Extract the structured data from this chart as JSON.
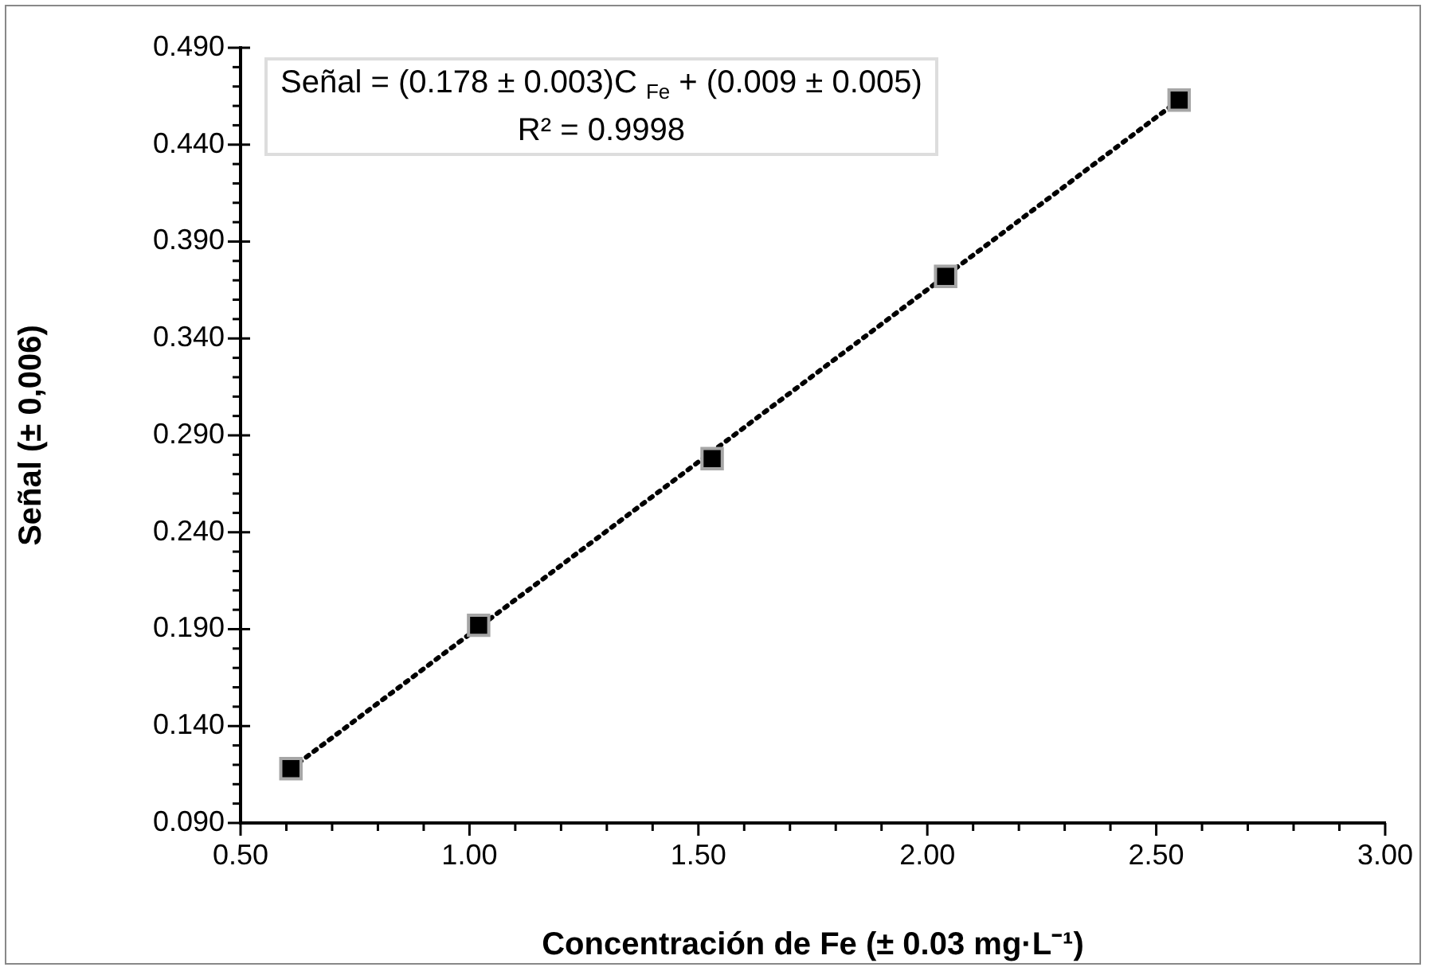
{
  "chart_data": {
    "type": "scatter",
    "xlabel": "Concentración de Fe (± 0.03 mg·L⁻¹)",
    "ylabel": "Señal (± 0,006)",
    "x": [
      0.61,
      1.02,
      1.53,
      2.04,
      2.55
    ],
    "series": [
      {
        "color": "#000000",
        "values": [
          0.118,
          0.192,
          0.278,
          0.372,
          0.463
        ],
        "marker": "square"
      },
      {
        "type": "line",
        "x": [
          0.61,
          2.55
        ],
        "values": [
          0.118,
          0.463
        ],
        "color": "#000000",
        "line_style": "dotted",
        "marker": "none"
      }
    ],
    "annotations": [
      "Señal = (0.178 ± 0.003)C $_{Fe}$ + (0.009 ± 0.005)",
      "R² = 0.9998"
    ],
    "xlim": [
      0.5,
      3.0
    ],
    "ylim": [
      0.09,
      0.49
    ],
    "xticks": [
      {
        "value": 0.5,
        "label": "0.50"
      },
      {
        "value": 0.6,
        "label": null
      },
      {
        "value": 0.7,
        "label": null
      },
      {
        "value": 0.8,
        "label": null
      },
      {
        "value": 0.9,
        "label": null
      },
      {
        "value": 1.0,
        "label": "1.00"
      },
      {
        "value": 1.1,
        "label": null
      },
      {
        "value": 1.2,
        "label": null
      },
      {
        "value": 1.3,
        "label": null
      },
      {
        "value": 1.4,
        "label": null
      },
      {
        "value": 1.5,
        "label": "1.50"
      },
      {
        "value": 1.6,
        "label": null
      },
      {
        "value": 1.7,
        "label": null
      },
      {
        "value": 1.8,
        "label": null
      },
      {
        "value": 1.9,
        "label": null
      },
      {
        "value": 2.0,
        "label": "2.00"
      },
      {
        "value": 2.1,
        "label": null
      },
      {
        "value": 2.2,
        "label": null
      },
      {
        "value": 2.3,
        "label": null
      },
      {
        "value": 2.4,
        "label": null
      },
      {
        "value": 2.5,
        "label": "2.50"
      },
      {
        "value": 2.6,
        "label": null
      },
      {
        "value": 2.7,
        "label": null
      },
      {
        "value": 2.8,
        "label": null
      },
      {
        "value": 2.9,
        "label": null
      },
      {
        "value": 3.0,
        "label": "3.00"
      }
    ],
    "yticks": [
      {
        "value": 0.09,
        "label": "0.090"
      },
      {
        "value": 0.1,
        "label": null
      },
      {
        "value": 0.11,
        "label": null
      },
      {
        "value": 0.12,
        "label": null
      },
      {
        "value": 0.13,
        "label": null
      },
      {
        "value": 0.14,
        "label": "0.140"
      },
      {
        "value": 0.15,
        "label": null
      },
      {
        "value": 0.16,
        "label": null
      },
      {
        "value": 0.17,
        "label": null
      },
      {
        "value": 0.18,
        "label": null
      },
      {
        "value": 0.19,
        "label": "0.190"
      },
      {
        "value": 0.2,
        "label": null
      },
      {
        "value": 0.21,
        "label": null
      },
      {
        "value": 0.22,
        "label": null
      },
      {
        "value": 0.23,
        "label": null
      },
      {
        "value": 0.24,
        "label": "0.240"
      },
      {
        "value": 0.25,
        "label": null
      },
      {
        "value": 0.26,
        "label": null
      },
      {
        "value": 0.27,
        "label": null
      },
      {
        "value": 0.28,
        "label": null
      },
      {
        "value": 0.29,
        "label": "0.290"
      },
      {
        "value": 0.3,
        "label": null
      },
      {
        "value": 0.31,
        "label": null
      },
      {
        "value": 0.32,
        "label": null
      },
      {
        "value": 0.33,
        "label": null
      },
      {
        "value": 0.34,
        "label": "0.340"
      },
      {
        "value": 0.35,
        "label": null
      },
      {
        "value": 0.36,
        "label": null
      },
      {
        "value": 0.37,
        "label": null
      },
      {
        "value": 0.38,
        "label": null
      },
      {
        "value": 0.39,
        "label": "0.390"
      },
      {
        "value": 0.4,
        "label": null
      },
      {
        "value": 0.41,
        "label": null
      },
      {
        "value": 0.42,
        "label": null
      },
      {
        "value": 0.43,
        "label": null
      },
      {
        "value": 0.44,
        "label": "0.440"
      },
      {
        "value": 0.45,
        "label": null
      },
      {
        "value": 0.46,
        "label": null
      },
      {
        "value": 0.47,
        "label": null
      },
      {
        "value": 0.48,
        "label": null
      },
      {
        "value": 0.49,
        "label": "0.490"
      }
    ],
    "grid": false,
    "legend": false
  }
}
